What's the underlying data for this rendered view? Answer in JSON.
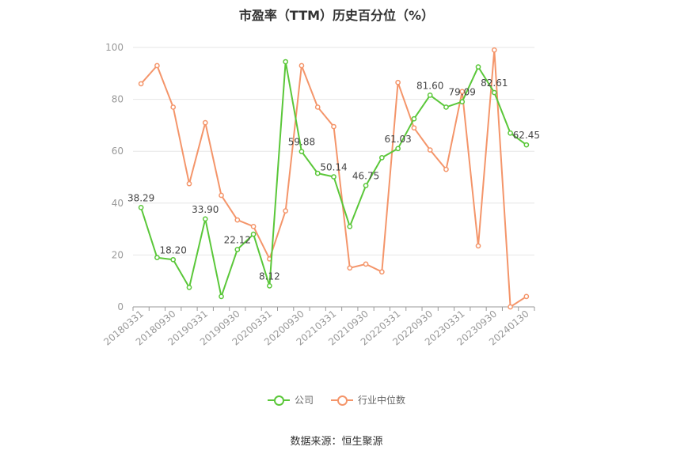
{
  "title": "市盈率（TTM）历史百分位（%）",
  "source": "数据来源：恒生聚源",
  "legend": {
    "company": "公司",
    "industry": "行业中位数"
  },
  "colors": {
    "company": "#5ac739",
    "industry": "#f4956a",
    "grid": "#e6e6e6",
    "axis": "#999999"
  },
  "chart_data": {
    "type": "line",
    "title": "市盈率（TTM）历史百分位（%）",
    "ylim": [
      0,
      100
    ],
    "yticks": [
      0,
      20,
      40,
      60,
      80,
      100
    ],
    "xtick_labels": [
      "20180331",
      "20180930",
      "20190331",
      "20190930",
      "20200331",
      "20200930",
      "20210331",
      "20210930",
      "20220331",
      "20220930",
      "20230331",
      "20230930",
      "20240130"
    ],
    "legend_position": "bottom",
    "grid": true,
    "series": [
      {
        "name": "公司",
        "values": [
          38.29,
          19.0,
          18.2,
          7.5,
          33.9,
          4.0,
          22.12,
          28.0,
          8.12,
          94.5,
          59.88,
          51.5,
          50.14,
          31.0,
          46.75,
          57.5,
          61.03,
          72.5,
          81.6,
          77.0,
          79.09,
          92.5,
          82.61,
          67.0,
          62.45
        ],
        "labels": [
          "38.29",
          "",
          "18.20",
          "",
          "33.90",
          "",
          "22.12",
          "",
          "8.12",
          "",
          "59.88",
          "",
          "50.14",
          "",
          "46.75",
          "",
          "61.03",
          "",
          "81.60",
          "",
          "79.09",
          "",
          "82.61",
          "",
          "62.45"
        ]
      },
      {
        "name": "行业中位数",
        "values": [
          86.0,
          93.0,
          77.0,
          47.5,
          71.0,
          43.0,
          33.5,
          31.0,
          18.5,
          37.0,
          93.0,
          77.0,
          69.5,
          15.0,
          16.5,
          13.5,
          86.5,
          69.0,
          60.5,
          53.0,
          83.0,
          23.5,
          99.0,
          0.0,
          4.0
        ]
      }
    ]
  }
}
